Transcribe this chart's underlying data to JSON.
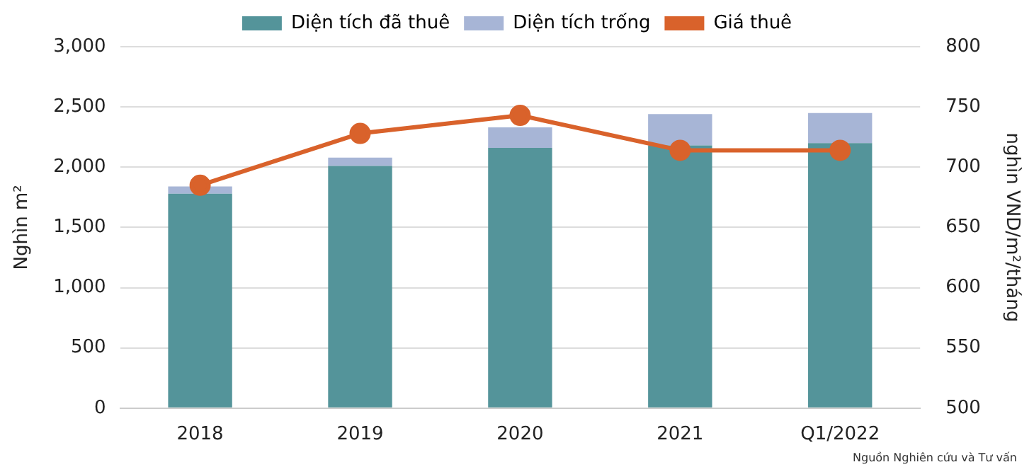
{
  "chart_data": {
    "type": "bar",
    "stacked": true,
    "categories": [
      "2018",
      "2019",
      "2020",
      "2021",
      "Q1/2022"
    ],
    "series": [
      {
        "name": "Diện tích đã thuê",
        "color": "#54949a",
        "values": [
          1780,
          2010,
          2160,
          2180,
          2200
        ]
      },
      {
        "name": "Diện tích trống",
        "color": "#a7b5d6",
        "values": [
          60,
          70,
          170,
          260,
          250
        ]
      },
      {
        "name": "Giá thuê",
        "type": "line",
        "axis": "y2",
        "color": "#d9622b",
        "values": [
          685,
          728,
          743,
          714,
          714
        ]
      }
    ],
    "ylabel": "Nghìn m²",
    "y2label": "nghìn VND/m²/tháng",
    "ylim": [
      0,
      3000
    ],
    "yticks": [
      0,
      500,
      {
        "value": 1000,
        "label": "1,000"
      },
      {
        "value": 1500,
        "label": "1,500"
      },
      {
        "value": 2000,
        "label": "2,000"
      },
      {
        "value": 2500,
        "label": "2,500"
      },
      {
        "value": 3000,
        "label": "3,000"
      }
    ],
    "y2lim": [
      500,
      800
    ],
    "y2ticks": [
      500,
      550,
      600,
      650,
      700,
      750,
      800
    ],
    "grid": "y",
    "legend": "top",
    "marker": "circle",
    "line_style": "solid",
    "annotations": [
      "Nguồn Nghiên cứu và Tư vấn"
    ]
  }
}
